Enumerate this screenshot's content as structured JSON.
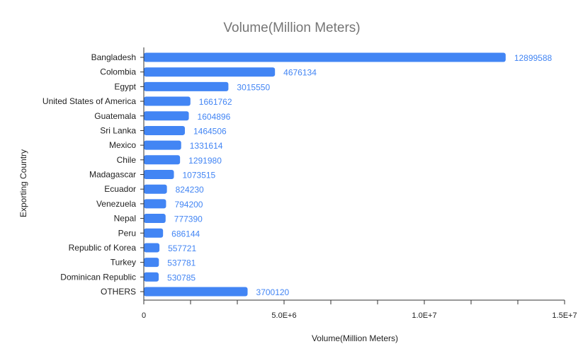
{
  "chart_data": {
    "type": "bar",
    "orientation": "horizontal",
    "title": "Volume(Million Meters)",
    "xlabel": "Volume(Million Meters)",
    "ylabel": "Exporting Country",
    "categories": [
      "Bangladesh",
      "Colombia",
      "Egypt",
      "United States of America",
      "Guatemala",
      "Sri Lanka",
      "Mexico",
      "Chile",
      "Madagascar",
      "Ecuador",
      "Venezuela",
      "Nepal",
      "Peru",
      "Republic of Korea",
      "Turkey",
      "Dominican Republic",
      "OTHERS"
    ],
    "values": [
      12899588,
      4676134,
      3015550,
      1661762,
      1604896,
      1464506,
      1331614,
      1291980,
      1073515,
      824230,
      794200,
      777390,
      686144,
      557721,
      537781,
      530785,
      3700120
    ],
    "data_labels": [
      "12899588",
      "4676134",
      "3015550",
      "1661762",
      "1604896",
      "1464506",
      "1331614",
      "1291980",
      "1073515",
      "824230",
      "794200",
      "777390",
      "686144",
      "557721",
      "537781",
      "530785",
      "3700120"
    ],
    "xlim": [
      0,
      15000000
    ],
    "x_ticks": [
      0,
      5000000,
      10000000,
      15000000
    ],
    "x_tick_labels": [
      "0",
      "5.0E+6",
      "1.0E+7",
      "1.5E+7"
    ],
    "x_minor_ticks": 9,
    "bar_color": "#4285f4",
    "label_color": "#4285f4",
    "grid": false,
    "legend": "none"
  }
}
